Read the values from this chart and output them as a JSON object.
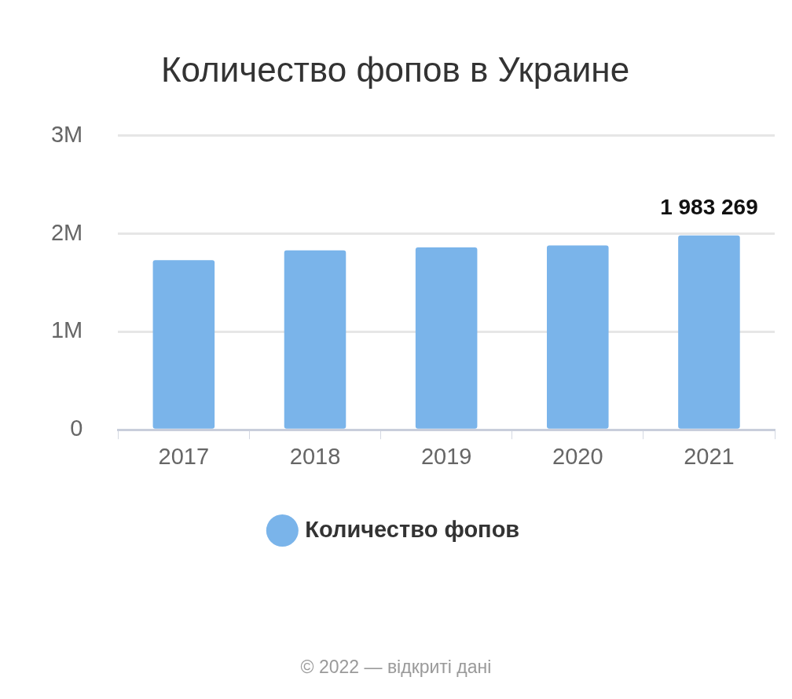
{
  "chart_data": {
    "type": "bar",
    "title": "Количество фопов в Украине",
    "categories": [
      "2017",
      "2018",
      "2019",
      "2020",
      "2021"
    ],
    "series": [
      {
        "name": "Количество фопов",
        "color": "#7ab4ea",
        "values": [
          1730000,
          1830000,
          1860000,
          1880000,
          1983269
        ],
        "value_labels": [
          null,
          null,
          null,
          null,
          "1 983 269"
        ]
      }
    ],
    "ylim": [
      0,
      3000000
    ],
    "yticks": [
      0,
      {
        "value": 1000000,
        "label": "1M"
      },
      {
        "value": 2000000,
        "label": "2M"
      },
      {
        "value": 3000000,
        "label": "3M"
      }
    ],
    "grid": "y",
    "legend": "bottom",
    "annotations": [
      "© 2022 — відкриті дані"
    ]
  }
}
